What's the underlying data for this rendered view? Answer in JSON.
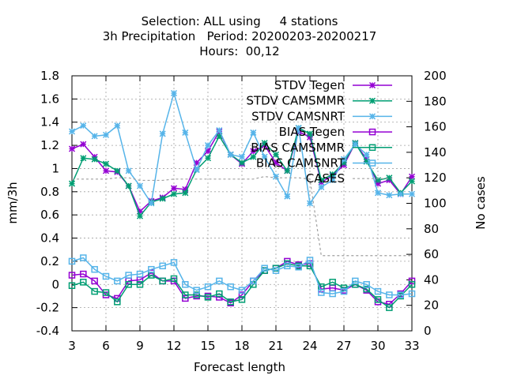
{
  "chart_data": {
    "type": "line",
    "title_lines": [
      "Selection: ALL using     4 stations",
      "3h Precipitation   Period: 20200203-20200217",
      "Hours:  00,12"
    ],
    "xlabel": "Forecast length",
    "ylabel": "mm/3h",
    "y2label": "No cases",
    "xlim": [
      3,
      33
    ],
    "ylim": [
      -0.4,
      1.8
    ],
    "y2lim": [
      0,
      200
    ],
    "xticks": [
      3,
      6,
      9,
      12,
      15,
      18,
      21,
      24,
      27,
      30,
      33
    ],
    "yticks": [
      -0.4,
      -0.2,
      0,
      0.2,
      0.4,
      0.6,
      0.8,
      1,
      1.2,
      1.4,
      1.6,
      1.8
    ],
    "ytick_labels": [
      "-0.4",
      "-0.2",
      "0",
      "0.2",
      "0.4",
      "0.6",
      "0.8",
      "1",
      "1.2",
      "1.4",
      "1.6",
      "1.8"
    ],
    "y2ticks": [
      0,
      20,
      40,
      60,
      80,
      100,
      120,
      140,
      160,
      180,
      200
    ],
    "grid": true,
    "legend_position": "top-right",
    "x": [
      3,
      4,
      5,
      6,
      7,
      8,
      9,
      10,
      11,
      12,
      13,
      14,
      15,
      16,
      17,
      18,
      19,
      20,
      21,
      22,
      23,
      24,
      25,
      26,
      27,
      28,
      29,
      30,
      31,
      32,
      33
    ],
    "series": [
      {
        "name": "STDV Tegen",
        "color": "#9400d3",
        "marker": "x",
        "axis": "y",
        "values": [
          1.17,
          1.21,
          1.1,
          0.98,
          0.97,
          0.85,
          0.63,
          0.72,
          0.75,
          0.83,
          0.82,
          1.05,
          1.15,
          1.32,
          1.12,
          1.04,
          1.15,
          1.2,
          1.05,
          0.98,
          1.32,
          1.27,
          0.88,
          0.94,
          1.03,
          1.22,
          1.08,
          0.87,
          0.9,
          0.78,
          0.93
        ]
      },
      {
        "name": "STDV CAMSMMR",
        "color": "#009e73",
        "marker": "x",
        "axis": "y",
        "values": [
          0.87,
          1.09,
          1.08,
          1.04,
          0.98,
          0.85,
          0.59,
          0.71,
          0.74,
          0.78,
          0.79,
          0.99,
          1.09,
          1.28,
          1.12,
          1.05,
          1.1,
          1.22,
          1.12,
          0.98,
          1.35,
          1.3,
          0.9,
          0.95,
          1.05,
          1.22,
          1.06,
          0.9,
          0.92,
          0.79,
          0.89
        ]
      },
      {
        "name": "STDV CAMSNRT",
        "color": "#56b4e9",
        "marker": "x",
        "axis": "y",
        "values": [
          1.32,
          1.37,
          1.28,
          1.29,
          1.37,
          0.98,
          0.85,
          0.7,
          1.3,
          1.65,
          1.31,
          0.99,
          1.2,
          1.33,
          1.12,
          1.1,
          1.31,
          1.1,
          0.93,
          0.76,
          1.35,
          0.7,
          0.84,
          0.9,
          1.08,
          1.21,
          1.12,
          0.79,
          0.77,
          0.78,
          0.78
        ]
      },
      {
        "name": "BIAS Tegen",
        "color": "#9400d3",
        "marker": "square",
        "axis": "y",
        "values": [
          0.08,
          0.09,
          0.03,
          -0.09,
          -0.12,
          0.03,
          0.04,
          0.1,
          0.03,
          0.03,
          -0.12,
          -0.1,
          -0.1,
          -0.11,
          -0.16,
          -0.09,
          0.03,
          0.12,
          0.14,
          0.2,
          0.17,
          0.18,
          -0.04,
          -0.03,
          -0.05,
          0.0,
          -0.05,
          -0.15,
          -0.17,
          -0.08,
          0.03
        ]
      },
      {
        "name": "BIAS CAMSMMR",
        "color": "#009e73",
        "marker": "square",
        "axis": "y",
        "values": [
          -0.01,
          0.02,
          -0.06,
          -0.07,
          -0.15,
          0.0,
          0.0,
          0.08,
          0.03,
          0.05,
          -0.09,
          -0.09,
          -0.11,
          -0.08,
          -0.15,
          -0.13,
          0.0,
          0.12,
          0.14,
          0.18,
          0.16,
          0.16,
          -0.02,
          0.02,
          -0.03,
          0.0,
          -0.04,
          -0.13,
          -0.2,
          -0.1,
          0.0
        ]
      },
      {
        "name": "BIAS CAMSNRT",
        "color": "#56b4e9",
        "marker": "square",
        "axis": "y",
        "values": [
          0.2,
          0.23,
          0.13,
          0.07,
          0.03,
          0.08,
          0.09,
          0.13,
          0.16,
          0.19,
          0.0,
          -0.05,
          -0.02,
          0.03,
          -0.02,
          -0.05,
          0.03,
          0.14,
          0.12,
          0.16,
          0.15,
          0.21,
          -0.07,
          -0.08,
          -0.06,
          0.03,
          0.0,
          -0.06,
          -0.09,
          -0.09,
          -0.08
        ]
      },
      {
        "name": "CASES",
        "color": "#a0a0a0",
        "marker": "none",
        "dash": true,
        "axis": "y2",
        "values": [
          119,
          119,
          119,
          119,
          120,
          120,
          118,
          118,
          118,
          119,
          119,
          119,
          119,
          119,
          119,
          119,
          119,
          121,
          120,
          120,
          120,
          119,
          59,
          59,
          59,
          59,
          59,
          59,
          59,
          59,
          59
        ]
      }
    ]
  }
}
